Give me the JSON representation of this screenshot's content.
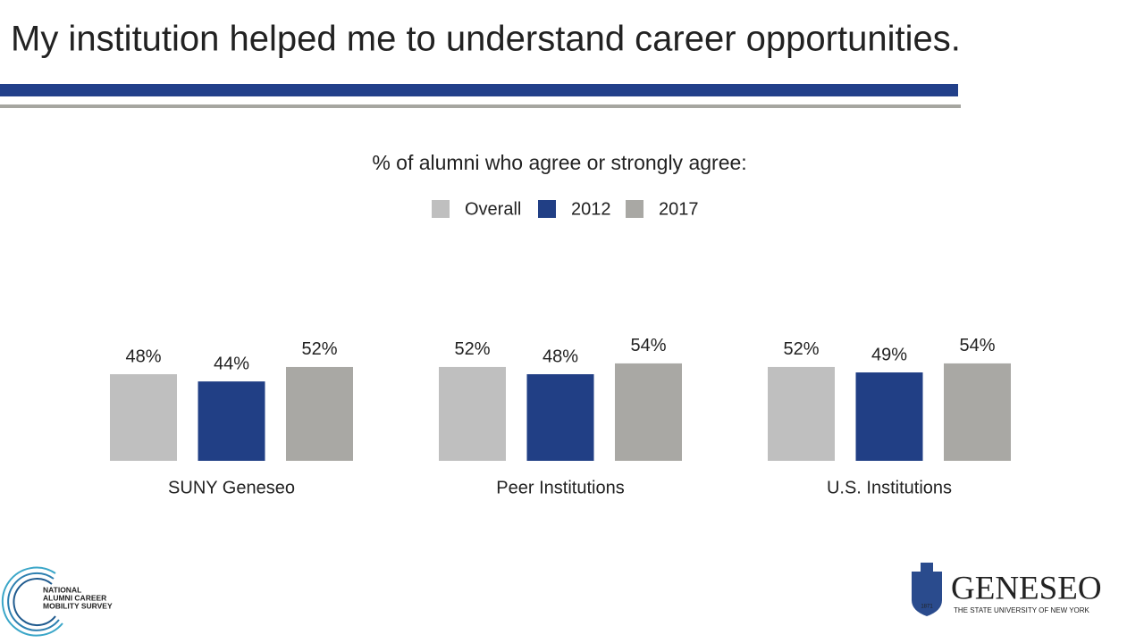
{
  "title": "My institution helped me to understand career opportunities.",
  "chart_data": {
    "type": "bar",
    "subtitle": "% of alumni who agree or strongly agree:",
    "categories": [
      "SUNY Geneseo",
      "Peer Institutions",
      "U.S. Institutions"
    ],
    "series": [
      {
        "name": "Overall",
        "color": "#bfbfbf",
        "values": [
          48,
          52,
          52
        ],
        "value_labels": [
          "48%",
          "52%",
          "52%"
        ]
      },
      {
        "name": "2012",
        "color": "#213f85",
        "values": [
          44,
          48,
          49
        ],
        "value_labels": [
          "44%",
          "48%",
          "49%"
        ]
      },
      {
        "name": "2017",
        "color": "#a9a8a4",
        "values": [
          52,
          54,
          54
        ],
        "value_labels": [
          "52%",
          "54%",
          "54%"
        ]
      }
    ]
  },
  "logos": {
    "survey": [
      "NATIONAL",
      "ALUMNI CAREER",
      "MOBILITY SURVEY"
    ],
    "college": "GENESEO",
    "college_sub": "THE STATE UNIVERSITY OF NEW YORK",
    "year": "1871"
  }
}
